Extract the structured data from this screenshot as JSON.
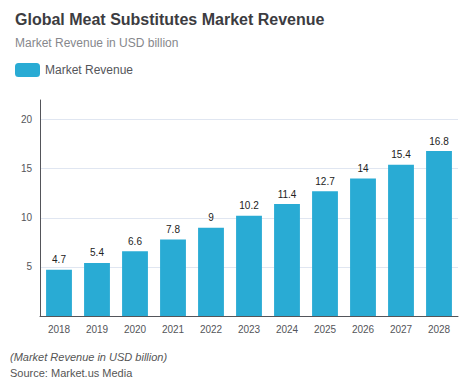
{
  "chart_data": {
    "type": "bar",
    "title": "Global Meat Substitutes Market Revenue",
    "subtitle": "Market Revenue in USD billion",
    "annotations": [
      "(Market Revenue in USD billion)",
      "Source: Market.us Media"
    ],
    "categories": [
      "2018",
      "2019",
      "2020",
      "2021",
      "2022",
      "2023",
      "2024",
      "2025",
      "2026",
      "2027",
      "2028"
    ],
    "series": [
      {
        "name": "Market Revenue",
        "color": "#29ABD4",
        "values": [
          4.7,
          5.4,
          6.6,
          7.8,
          9.0,
          10.2,
          11.4,
          12.7,
          14.0,
          15.4,
          16.8
        ]
      }
    ],
    "ylim": [
      0,
      22
    ],
    "yticks": [
      5,
      10,
      15,
      20
    ],
    "grid": true,
    "legend": "upper left",
    "data_labels": true
  }
}
